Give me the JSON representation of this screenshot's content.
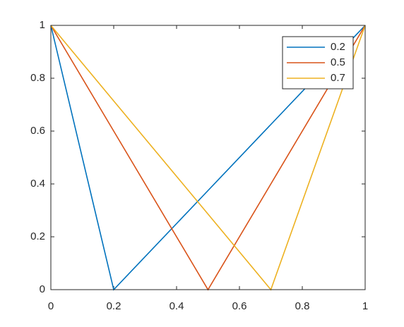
{
  "chart_data": {
    "type": "line",
    "x": [
      0,
      0.2,
      0.5,
      0.7,
      1
    ],
    "series": [
      {
        "name": "0.2",
        "color": "#0072bd",
        "values": [
          1,
          0,
          0.375,
          0.625,
          1
        ]
      },
      {
        "name": "0.5",
        "color": "#d95319",
        "values": [
          1,
          0.6,
          0,
          0.4,
          1
        ]
      },
      {
        "name": "0.7",
        "color": "#edb120",
        "values": [
          1,
          0.714,
          0.286,
          0,
          1
        ]
      }
    ],
    "xlim": [
      0,
      1
    ],
    "xticks": [
      0,
      0.2,
      0.4,
      0.6,
      0.8,
      1
    ],
    "ylim": [
      0,
      1
    ],
    "yticks": [
      0,
      0.2,
      0.4,
      0.6,
      0.8,
      1
    ],
    "grid": false,
    "legend": "northeast"
  }
}
